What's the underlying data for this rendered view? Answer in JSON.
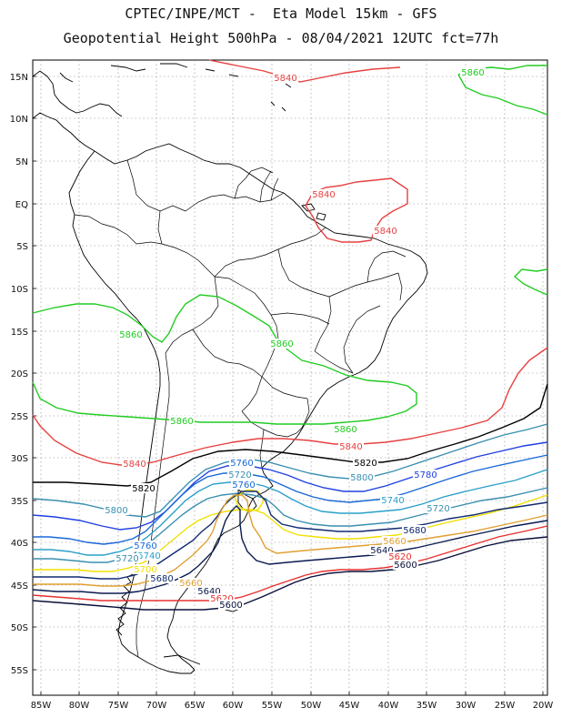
{
  "header": {
    "line1": "CPTEC/INPE/MCT -  Eta Model 15km - GFS",
    "line2": "Geopotential Height 500hPa - 08/04/2021 12UTC fct=77h"
  },
  "axes": {
    "lat_labels": [
      "15N",
      "10N",
      "5N",
      "EQ",
      "5S",
      "10S",
      "15S",
      "20S",
      "25S",
      "30S",
      "35S",
      "40S",
      "45S",
      "50S",
      "55S"
    ],
    "lon_labels": [
      "85W",
      "80W",
      "75W",
      "70W",
      "65W",
      "60W",
      "55W",
      "50W",
      "45W",
      "40W",
      "35W",
      "30W",
      "25W",
      "20W"
    ]
  },
  "colors": {
    "c5860": "#22cc22",
    "c5840": "#e84040",
    "c5820": "#000000",
    "c5800": "#3a8fb0",
    "c5780": "#2040e0",
    "c5760": "#1868d8",
    "c5740": "#2aa0c8",
    "c5720": "#3a8fb0",
    "c5700": "#f0e000",
    "c5680": "#102a70",
    "c5660": "#e0a030",
    "c5640": "#0a1a50",
    "c5620": "#e83030",
    "c5600": "#08103a",
    "coast": "#000000"
  },
  "contour_labels": [
    {
      "text": "5840",
      "color": "c5840"
    },
    {
      "text": "5860",
      "color": "c5860"
    },
    {
      "text": "5840",
      "color": "c5840"
    },
    {
      "text": "5840",
      "color": "c5840"
    },
    {
      "text": "5860",
      "color": "c5860"
    },
    {
      "text": "5860",
      "color": "c5860"
    },
    {
      "text": "5860",
      "color": "c5860"
    },
    {
      "text": "5860",
      "color": "c5860"
    },
    {
      "text": "5840",
      "color": "c5840"
    },
    {
      "text": "5840",
      "color": "c5840"
    },
    {
      "text": "5820",
      "color": "c5820"
    },
    {
      "text": "5820",
      "color": "c5820"
    },
    {
      "text": "5800",
      "color": "c5800"
    },
    {
      "text": "5800",
      "color": "c5800"
    },
    {
      "text": "5780",
      "color": "c5780"
    },
    {
      "text": "5760",
      "color": "c5760"
    },
    {
      "text": "5720",
      "color": "c5720"
    },
    {
      "text": "5760",
      "color": "c5760"
    },
    {
      "text": "5740",
      "color": "c5740"
    },
    {
      "text": "5720",
      "color": "c5720"
    },
    {
      "text": "5700",
      "color": "c5700"
    },
    {
      "text": "5760",
      "color": "c5760"
    },
    {
      "text": "5740",
      "color": "c5740"
    },
    {
      "text": "5720",
      "color": "c5720"
    },
    {
      "text": "5680",
      "color": "c5680"
    },
    {
      "text": "5660",
      "color": "c5660"
    },
    {
      "text": "5680",
      "color": "c5680"
    },
    {
      "text": "5660",
      "color": "c5660"
    },
    {
      "text": "5640",
      "color": "c5640"
    },
    {
      "text": "5620",
      "color": "c5620"
    },
    {
      "text": "5600",
      "color": "c5600"
    },
    {
      "text": "5640",
      "color": "c5640"
    },
    {
      "text": "5620",
      "color": "c5620"
    },
    {
      "text": "5600",
      "color": "c5600"
    }
  ]
}
